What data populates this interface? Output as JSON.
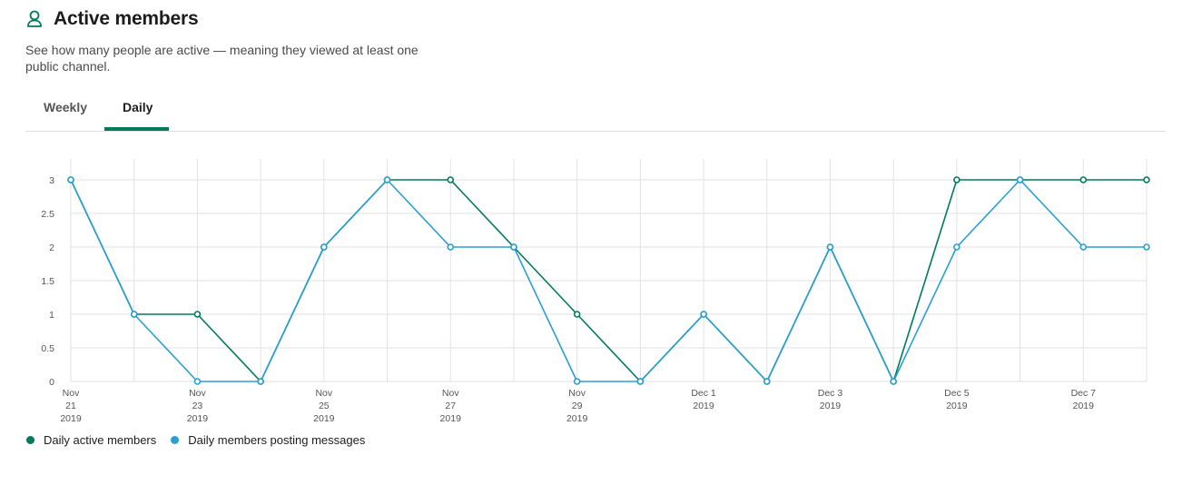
{
  "header": {
    "title": "Active members",
    "icon": "person-icon",
    "description": "See how many people are active — meaning they viewed at least one public channel."
  },
  "tabs": [
    {
      "label": "Weekly",
      "active": false
    },
    {
      "label": "Daily",
      "active": true
    }
  ],
  "colors": {
    "accent": "#007a5a",
    "active_series": "#007a5a",
    "posting_series": "#2a9fd0",
    "grid": "#e2e2e2"
  },
  "chart_data": {
    "type": "line",
    "x": [
      "2019-11-21",
      "2019-11-22",
      "2019-11-23",
      "2019-11-24",
      "2019-11-25",
      "2019-11-26",
      "2019-11-27",
      "2019-11-28",
      "2019-11-29",
      "2019-11-30",
      "2019-12-01",
      "2019-12-02",
      "2019-12-03",
      "2019-12-04",
      "2019-12-05",
      "2019-12-06",
      "2019-12-07",
      "2019-12-08"
    ],
    "x_tick_labels": [
      [
        "Nov",
        "21",
        "2019"
      ],
      null,
      [
        "Nov",
        "23",
        "2019"
      ],
      null,
      [
        "Nov",
        "25",
        "2019"
      ],
      null,
      [
        "Nov",
        "27",
        "2019"
      ],
      null,
      [
        "Nov",
        "29",
        "2019"
      ],
      null,
      [
        "Dec 1",
        "2019"
      ],
      null,
      [
        "Dec 3",
        "2019"
      ],
      null,
      [
        "Dec 5",
        "2019"
      ],
      null,
      [
        "Dec 7",
        "2019"
      ],
      null
    ],
    "y_ticks": [
      "0",
      "0.5",
      "1",
      "1.5",
      "2",
      "2.5",
      "3"
    ],
    "ylim": [
      0,
      3
    ],
    "grid": true,
    "legend_position": "bottom-left",
    "series": [
      {
        "name": "Daily active members",
        "color": "#007a5a",
        "values": [
          3,
          1,
          1,
          0,
          2,
          3,
          3,
          2,
          1,
          0,
          1,
          0,
          2,
          0,
          3,
          3,
          3,
          3
        ]
      },
      {
        "name": "Daily members posting messages",
        "color": "#2a9fd0",
        "values": [
          3,
          1,
          0,
          0,
          2,
          3,
          2,
          2,
          0,
          0,
          1,
          0,
          2,
          0,
          2,
          3,
          2,
          2
        ]
      }
    ]
  }
}
